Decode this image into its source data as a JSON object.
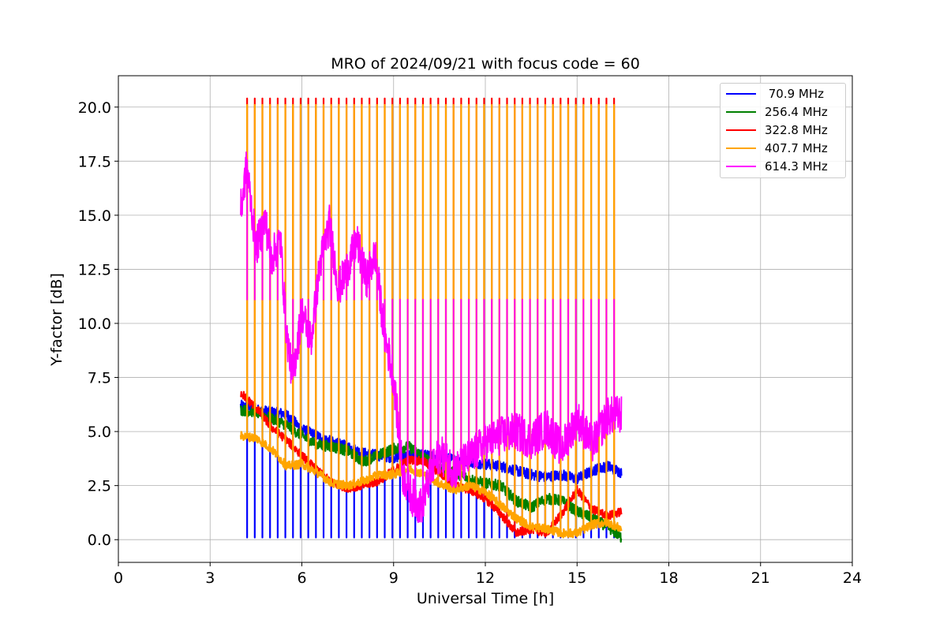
{
  "chart_data": {
    "type": "line",
    "title": "MRO of 2024/09/21 with focus code = 60",
    "xlabel": "Universal Time [h]",
    "ylabel": "Y-factor [dB]",
    "xlim": [
      0,
      24
    ],
    "ylim": [
      -1.05,
      21.45
    ],
    "xticks": [
      "0",
      "3",
      "6",
      "9",
      "12",
      "15",
      "18",
      "21",
      "24"
    ],
    "yticks": [
      "0.0",
      "2.5",
      "5.0",
      "7.5",
      "10.0",
      "12.5",
      "15.0",
      "17.5",
      "20.0"
    ],
    "grid": true,
    "legend_position": "top-right",
    "spike_period_h": 0.25,
    "spike_start_h": 4.2,
    "spike_end_h": 16.3,
    "series": [
      {
        "name": " 70.9 MHz",
        "color": "#0000ff",
        "x": [
          4.0,
          4.5,
          5.0,
          5.5,
          6.0,
          6.5,
          7.0,
          7.5,
          8.0,
          8.5,
          9.0,
          9.5,
          10.0,
          10.5,
          11.0,
          11.5,
          12.0,
          12.5,
          13.0,
          13.5,
          14.0,
          14.5,
          15.0,
          15.5,
          16.0,
          16.45
        ],
        "y": [
          6.2,
          6.0,
          5.9,
          5.8,
          5.1,
          4.8,
          4.5,
          4.3,
          4.0,
          3.9,
          3.8,
          3.9,
          3.9,
          3.8,
          3.7,
          3.6,
          3.5,
          3.4,
          3.2,
          3.0,
          2.9,
          3.0,
          2.8,
          3.2,
          3.4,
          3.1
        ],
        "spike_min": 0.1
      },
      {
        "name": "256.4 MHz",
        "color": "#008000",
        "x": [
          4.0,
          4.5,
          5.0,
          5.5,
          6.0,
          6.5,
          7.0,
          7.5,
          8.0,
          8.5,
          9.0,
          9.5,
          10.0,
          10.5,
          11.0,
          11.5,
          12.0,
          12.5,
          13.0,
          13.5,
          14.0,
          14.5,
          15.0,
          15.5,
          16.0,
          16.45
        ],
        "y": [
          6.0,
          5.9,
          5.6,
          5.3,
          4.8,
          4.4,
          4.3,
          4.1,
          3.6,
          3.9,
          4.2,
          4.3,
          3.8,
          3.3,
          3.1,
          2.8,
          2.6,
          2.5,
          1.8,
          1.5,
          1.9,
          1.8,
          1.3,
          1.0,
          0.6,
          0.1
        ]
      },
      {
        "name": "322.8 MHz",
        "color": "#ff0000",
        "x": [
          4.0,
          4.5,
          5.0,
          5.5,
          6.0,
          6.5,
          7.0,
          7.5,
          8.0,
          8.5,
          9.0,
          9.5,
          10.0,
          10.5,
          11.0,
          11.5,
          12.0,
          12.5,
          13.0,
          13.5,
          14.0,
          14.5,
          15.0,
          15.5,
          16.0,
          16.45
        ],
        "y": [
          6.8,
          6.1,
          5.2,
          4.6,
          3.9,
          3.2,
          2.6,
          2.4,
          2.5,
          2.7,
          3.2,
          3.7,
          3.6,
          3.1,
          2.5,
          2.3,
          1.9,
          1.2,
          0.3,
          0.5,
          0.3,
          1.2,
          2.3,
          1.4,
          1.1,
          1.3
        ],
        "spike_max": 20.4
      },
      {
        "name": "407.7 MHz",
        "color": "#ffa500",
        "x": [
          4.0,
          4.5,
          5.0,
          5.5,
          6.0,
          6.5,
          7.0,
          7.5,
          8.0,
          8.5,
          9.0,
          9.5,
          10.0,
          10.5,
          11.0,
          11.5,
          12.0,
          12.5,
          13.0,
          13.5,
          14.0,
          14.5,
          15.0,
          15.5,
          16.0,
          16.45
        ],
        "y": [
          4.8,
          4.7,
          4.2,
          3.4,
          3.5,
          3.1,
          2.6,
          2.5,
          2.7,
          3.0,
          3.0,
          3.3,
          3.0,
          2.6,
          2.3,
          2.5,
          2.2,
          1.6,
          1.0,
          0.6,
          0.5,
          0.3,
          0.3,
          0.7,
          0.8,
          0.5
        ],
        "spike_max": 20.1
      },
      {
        "name": "614.3 MHz",
        "color": "#ff00ff",
        "x": [
          4.0,
          4.2,
          4.5,
          4.8,
          5.0,
          5.3,
          5.5,
          5.7,
          6.0,
          6.3,
          6.6,
          6.9,
          7.2,
          7.5,
          7.8,
          8.1,
          8.4,
          8.7,
          9.0,
          9.3,
          9.6,
          9.9,
          10.2,
          10.5,
          11.0,
          11.5,
          12.0,
          12.5,
          13.0,
          13.5,
          14.0,
          14.5,
          15.0,
          15.5,
          16.0,
          16.45
        ],
        "y": [
          15.2,
          17.3,
          13.5,
          14.8,
          13.0,
          13.9,
          9.5,
          7.5,
          10.5,
          9.2,
          12.8,
          14.6,
          11.6,
          12.6,
          13.8,
          12.0,
          13.2,
          9.5,
          7.5,
          3.0,
          2.0,
          1.5,
          3.0,
          4.0,
          3.2,
          3.8,
          4.5,
          4.8,
          5.0,
          4.6,
          5.2,
          4.2,
          5.6,
          4.4,
          5.7,
          5.8
        ],
        "spike_max": 11.1
      }
    ]
  }
}
